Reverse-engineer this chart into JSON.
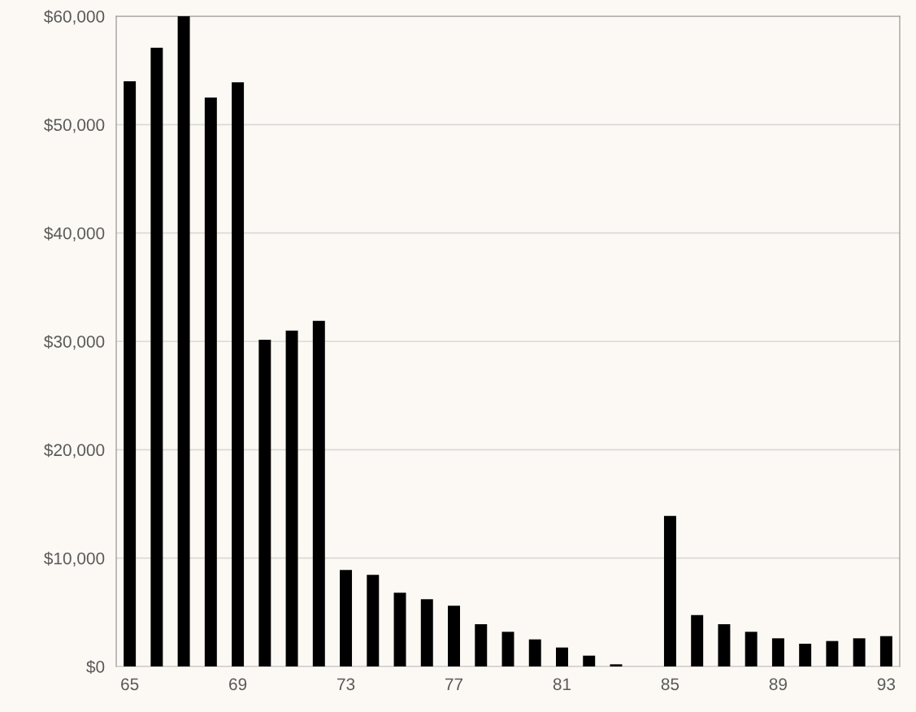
{
  "chart_data": {
    "type": "bar",
    "categories": [
      "65",
      null,
      null,
      null,
      "69",
      null,
      null,
      null,
      "73",
      null,
      null,
      null,
      "77",
      null,
      null,
      null,
      "81",
      null,
      null,
      null,
      "85",
      null,
      null,
      null,
      "89",
      null,
      null,
      null,
      "93"
    ],
    "values": [
      54000,
      57100,
      60000,
      52500,
      53900,
      30150,
      31000,
      31900,
      8900,
      8450,
      6800,
      6200,
      5600,
      3900,
      3200,
      2500,
      1750,
      1000,
      200,
      0,
      13900,
      4750,
      3900,
      3200,
      2600,
      2100,
      2350,
      2600,
      2800
    ],
    "color": "#000000",
    "ylim": [
      0,
      60000
    ],
    "yticks": [
      {
        "value": 0,
        "label": "$0"
      },
      {
        "value": 10000,
        "label": "$10,000"
      },
      {
        "value": 20000,
        "label": "$20,000"
      },
      {
        "value": 30000,
        "label": "$30,000"
      },
      {
        "value": 40000,
        "label": "$40,000"
      },
      {
        "value": 50000,
        "label": "$50,000"
      },
      {
        "value": 60000,
        "label": "$60,000"
      }
    ],
    "grid": "y",
    "legend": false
  }
}
